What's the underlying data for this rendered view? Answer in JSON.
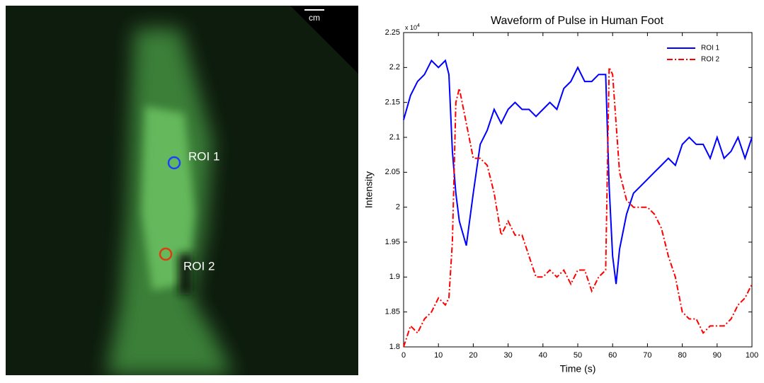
{
  "image": {
    "scale_label": "cm",
    "roi_labels": [
      "ROI 1",
      "ROI 2"
    ]
  },
  "chart_data": {
    "type": "line",
    "title": "Waveform of Pulse in Human Foot",
    "x_label": "Time (s)",
    "y_label": "Intensity",
    "y_multiplier": {
      "base": "x 10",
      "exponent": "4"
    },
    "x": [
      0,
      2,
      4,
      6,
      8,
      10,
      12,
      13,
      14,
      15,
      16,
      18,
      20,
      22,
      24,
      26,
      28,
      30,
      32,
      34,
      36,
      38,
      40,
      42,
      44,
      46,
      48,
      50,
      52,
      54,
      56,
      58,
      59,
      60,
      61,
      62,
      64,
      66,
      68,
      70,
      72,
      74,
      76,
      78,
      80,
      82,
      84,
      86,
      88,
      90,
      92,
      94,
      96,
      98,
      100
    ],
    "series": [
      {
        "name": "ROI 1",
        "color": "#0000ff",
        "dash": "solid",
        "values": [
          2.125,
          2.16,
          2.18,
          2.19,
          2.21,
          2.2,
          2.21,
          2.19,
          2.08,
          2.02,
          1.98,
          1.945,
          2.02,
          2.09,
          2.11,
          2.14,
          2.12,
          2.14,
          2.15,
          2.14,
          2.14,
          2.13,
          2.14,
          2.15,
          2.14,
          2.17,
          2.18,
          2.2,
          2.18,
          2.18,
          2.19,
          2.19,
          2.03,
          1.93,
          1.89,
          1.94,
          1.99,
          2.02,
          2.03,
          2.04,
          2.05,
          2.06,
          2.07,
          2.06,
          2.09,
          2.1,
          2.09,
          2.09,
          2.07,
          2.1,
          2.07,
          2.08,
          2.1,
          2.07,
          2.1
        ]
      },
      {
        "name": "ROI 2",
        "color": "#ff0000",
        "dash": "dashdot",
        "values": [
          1.8,
          1.83,
          1.82,
          1.84,
          1.85,
          1.87,
          1.86,
          1.87,
          1.95,
          2.15,
          2.17,
          2.12,
          2.07,
          2.07,
          2.06,
          2.02,
          1.96,
          1.98,
          1.96,
          1.96,
          1.93,
          1.9,
          1.9,
          1.91,
          1.9,
          1.91,
          1.89,
          1.91,
          1.91,
          1.88,
          1.9,
          1.91,
          2.2,
          2.19,
          2.12,
          2.05,
          2.01,
          2.0,
          2.0,
          2.0,
          1.99,
          1.97,
          1.93,
          1.9,
          1.85,
          1.84,
          1.84,
          1.82,
          1.83,
          1.83,
          1.83,
          1.84,
          1.86,
          1.87,
          1.89
        ]
      }
    ],
    "xlim": [
      0,
      100
    ],
    "xticks": [
      0,
      10,
      20,
      30,
      40,
      50,
      60,
      70,
      80,
      90,
      100
    ],
    "ylim": [
      1.8,
      2.25
    ],
    "yticks": [
      1.8,
      1.85,
      1.9,
      1.95,
      2,
      2.05,
      2.1,
      2.15,
      2.2,
      2.25
    ],
    "grid": false,
    "legend": "upper right"
  }
}
